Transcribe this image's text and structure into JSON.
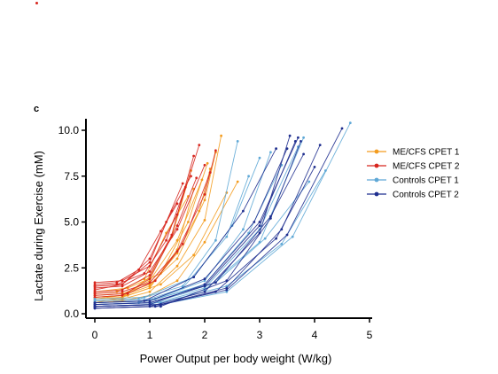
{
  "chart_data": {
    "type": "line",
    "panel_label": "c",
    "xlabel": "Power Output per body weight (W/kg)",
    "ylabel": "Lactate during Exercise (mM)",
    "xlim": [
      0,
      5
    ],
    "ylim": [
      0,
      10.5
    ],
    "x_ticks": [
      0,
      1,
      2,
      3,
      4,
      5
    ],
    "y_ticks": [
      0.0,
      2.5,
      5.0,
      7.5,
      10.0
    ],
    "x_tick_labels": [
      "0",
      "1",
      "2",
      "3",
      "4",
      "5"
    ],
    "y_tick_labels": [
      "0.0",
      "2.5",
      "5.0",
      "7.5",
      "10.0"
    ],
    "grid": false,
    "legend_position": "right",
    "colors": {
      "ME/CFS CPET 1": "#f39c1f",
      "ME/CFS CPET 2": "#d7261e",
      "Controls CPET 1": "#5fa8d6",
      "Controls CPET 2": "#1f2f8f"
    },
    "series": [
      {
        "name": "ME/CFS CPET 1",
        "curves": [
          {
            "x": [
              0,
              0.5,
              1.0,
              1.5,
              1.8
            ],
            "y": [
              0.8,
              0.9,
              1.4,
              3.5,
              6.8
            ]
          },
          {
            "x": [
              0,
              0.5,
              1.0,
              1.5,
              2.0,
              2.2
            ],
            "y": [
              1.0,
              1.1,
              1.6,
              3.0,
              6.2,
              8.8
            ]
          },
          {
            "x": [
              0,
              0.5,
              1.0,
              1.4,
              1.75
            ],
            "y": [
              0.6,
              0.9,
              2.0,
              4.2,
              7.8
            ]
          },
          {
            "x": [
              0,
              0.6,
              1.2,
              1.7,
              2.05
            ],
            "y": [
              1.2,
              1.4,
              2.2,
              5.0,
              8.2
            ]
          },
          {
            "x": [
              0,
              0.5,
              1.0,
              1.5,
              1.95
            ],
            "y": [
              0.9,
              1.0,
              1.8,
              4.0,
              7.3
            ]
          },
          {
            "x": [
              0,
              0.5,
              1.0,
              1.5,
              2.0,
              2.3
            ],
            "y": [
              0.7,
              0.8,
              1.2,
              2.6,
              5.1,
              9.7
            ]
          },
          {
            "x": [
              0,
              0.4,
              0.9,
              1.3,
              1.7
            ],
            "y": [
              1.1,
              1.2,
              1.9,
              4.4,
              6.4
            ]
          },
          {
            "x": [
              0,
              0.5,
              1.0,
              1.5,
              1.9,
              2.1
            ],
            "y": [
              0.8,
              1.0,
              1.5,
              3.3,
              5.6,
              7.9
            ]
          },
          {
            "x": [
              0,
              0.5,
              1.0,
              1.5,
              2.0,
              2.6
            ],
            "y": [
              0.6,
              0.7,
              1.0,
              1.8,
              3.9,
              7.2
            ]
          },
          {
            "x": [
              0,
              0.6,
              1.2,
              1.8,
              2.4
            ],
            "y": [
              0.9,
              1.0,
              1.6,
              3.2,
              6.6
            ]
          }
        ]
      },
      {
        "name": "ME/CFS CPET 2",
        "curves": [
          {
            "x": [
              0,
              0.5,
              1.0,
              1.3,
              1.6
            ],
            "y": [
              1.5,
              1.6,
              2.8,
              5.0,
              7.1
            ]
          },
          {
            "x": [
              0,
              0.4,
              0.8,
              1.2,
              1.5
            ],
            "y": [
              1.6,
              1.7,
              2.4,
              4.5,
              6.0
            ]
          },
          {
            "x": [
              0,
              0.5,
              1.0,
              1.5,
              1.9
            ],
            "y": [
              1.7,
              1.8,
              2.6,
              5.4,
              9.2
            ]
          },
          {
            "x": [
              0,
              0.5,
              1.0,
              1.4,
              1.8
            ],
            "y": [
              1.2,
              1.3,
              2.1,
              4.3,
              8.6
            ]
          },
          {
            "x": [
              0,
              0.5,
              1.0,
              1.5,
              2.0
            ],
            "y": [
              1.4,
              1.5,
              2.3,
              4.6,
              8.1
            ]
          },
          {
            "x": [
              0,
              0.6,
              1.1,
              1.6,
              2.1
            ],
            "y": [
              1.0,
              1.1,
              1.8,
              3.8,
              7.7
            ]
          },
          {
            "x": [
              0,
              0.5,
              1.0,
              1.4,
              1.75
            ],
            "y": [
              1.3,
              1.6,
              3.0,
              5.6,
              7.5
            ]
          },
          {
            "x": [
              0,
              0.4,
              0.9,
              1.3,
              1.65
            ],
            "y": [
              1.5,
              1.6,
              2.2,
              4.0,
              6.9
            ]
          },
          {
            "x": [
              0,
              0.5,
              1.0,
              1.5,
              2.0,
              2.2
            ],
            "y": [
              1.1,
              1.2,
              1.7,
              3.4,
              6.5,
              8.9
            ]
          },
          {
            "x": [
              0,
              0.5,
              1.0,
              1.5,
              1.85
            ],
            "y": [
              0.9,
              1.0,
              1.9,
              4.8,
              7.4
            ]
          }
        ]
      },
      {
        "name": "Controls CPET 1",
        "curves": [
          {
            "x": [
              0,
              0.8,
              1.6,
              2.2,
              2.6
            ],
            "y": [
              0.7,
              0.8,
              1.5,
              4.0,
              9.4
            ]
          },
          {
            "x": [
              0,
              0.8,
              1.6,
              2.4,
              2.8
            ],
            "y": [
              0.5,
              0.6,
              1.4,
              4.2,
              7.5
            ]
          },
          {
            "x": [
              0,
              1.0,
              2.0,
              2.7,
              3.2
            ],
            "y": [
              0.6,
              0.7,
              1.8,
              4.6,
              8.8
            ]
          },
          {
            "x": [
              0,
              1.0,
              2.0,
              3.0,
              3.8
            ],
            "y": [
              0.4,
              0.5,
              1.3,
              3.9,
              9.6
            ]
          },
          {
            "x": [
              0,
              1.2,
              2.4,
              3.4,
              4.2
            ],
            "y": [
              0.5,
              0.6,
              1.5,
              3.8,
              7.8
            ]
          },
          {
            "x": [
              0,
              1.2,
              2.4,
              3.6,
              4.65
            ],
            "y": [
              0.4,
              0.5,
              1.2,
              4.2,
              10.4
            ]
          },
          {
            "x": [
              0,
              1.0,
              2.0,
              2.8,
              3.4
            ],
            "y": [
              0.6,
              0.7,
              1.6,
              4.4,
              8.1
            ]
          },
          {
            "x": [
              0,
              0.9,
              1.8,
              2.5,
              3.0
            ],
            "y": [
              0.8,
              0.9,
              2.0,
              4.8,
              8.5
            ]
          },
          {
            "x": [
              0,
              1.0,
              2.0,
              3.0,
              3.7
            ],
            "y": [
              0.5,
              0.6,
              1.4,
              4.6,
              9.1
            ]
          },
          {
            "x": [
              0,
              1.1,
              2.2,
              3.1,
              3.9
            ],
            "y": [
              0.7,
              0.8,
              1.7,
              4.1,
              7.2
            ]
          }
        ]
      },
      {
        "name": "Controls CPET 2",
        "curves": [
          {
            "x": [
              0,
              1.0,
              2.0,
              3.0,
              3.7
            ],
            "y": [
              0.4,
              0.5,
              1.6,
              5.0,
              9.6
            ]
          },
          {
            "x": [
              0,
              1.2,
              2.4,
              3.2,
              3.75
            ],
            "y": [
              0.3,
              0.4,
              1.8,
              5.2,
              9.4
            ]
          },
          {
            "x": [
              0,
              1.0,
              2.0,
              2.9,
              3.5
            ],
            "y": [
              0.6,
              0.7,
              1.9,
              5.0,
              9.0
            ]
          },
          {
            "x": [
              0,
              1.2,
              2.4,
              3.4,
              4.1
            ],
            "y": [
              0.4,
              0.5,
              1.4,
              4.6,
              9.2
            ]
          },
          {
            "x": [
              0,
              1.0,
              2.0,
              3.0,
              3.55
            ],
            "y": [
              0.3,
              0.4,
              1.2,
              4.4,
              9.7
            ]
          },
          {
            "x": [
              0,
              1.0,
              2.2,
              3.2,
              3.8
            ],
            "y": [
              0.5,
              0.6,
              1.7,
              5.3,
              8.7
            ]
          },
          {
            "x": [
              0,
              1.2,
              2.4,
              3.5,
              4.5
            ],
            "y": [
              0.4,
              0.5,
              1.3,
              4.3,
              10.1
            ]
          },
          {
            "x": [
              0,
              0.9,
              1.8,
              2.7,
              3.3
            ],
            "y": [
              0.6,
              0.7,
              2.0,
              5.6,
              9.0
            ]
          },
          {
            "x": [
              0,
              1.0,
              2.0,
              3.0,
              3.65
            ],
            "y": [
              0.5,
              0.6,
              1.5,
              4.8,
              9.4
            ]
          },
          {
            "x": [
              0,
              1.1,
              2.2,
              3.3,
              4.0
            ],
            "y": [
              0.3,
              0.4,
              1.2,
              4.1,
              8.0
            ]
          }
        ]
      }
    ]
  }
}
